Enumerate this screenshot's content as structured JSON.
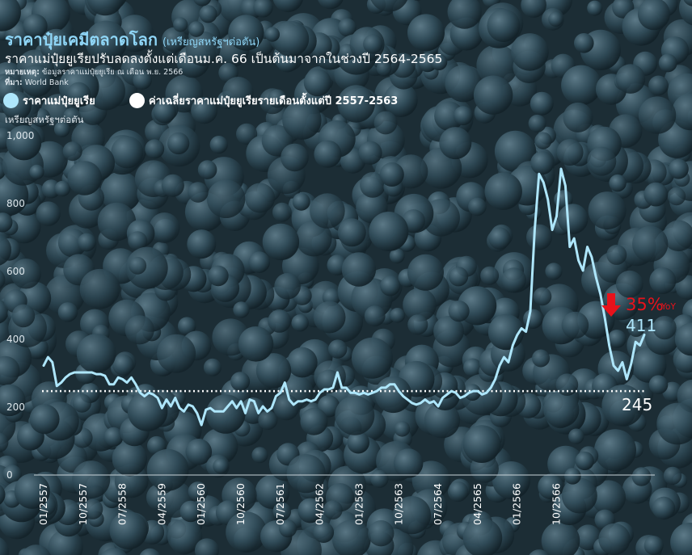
{
  "header": {
    "title": "ราคาปุ๋ยเคมีตลาดโลก",
    "title_unit": "(เหรียญสหรัฐฯต่อตัน)",
    "subtitle": "ราคาแม่ปุ๋ยยูเรียปรับลดลงตั้งแต่เดือนม.ค. 66 เป็นต้นมาจากในช่วงปี 2564-2565",
    "note_label": "หมายเหตุ:",
    "note_text": " ข้อมูลราคาแม่ปุ๋ยยูเรีย ณ เดือน พ.ย. 2566",
    "source_label": "ที่มา:",
    "source_text": " World Bank"
  },
  "legend": {
    "series_label": "ราคาแม่ปุ๋ยยูเรีย",
    "average_label": "ค่าเฉลี่ยราคาแม่ปุ๋ยยูเรียรายเดือนตั้งแต่ปี 2557-2563"
  },
  "colors": {
    "series": "#aee6fb",
    "average": "#ffffff",
    "down_arrow": "#e8121b",
    "background": "#34505e"
  },
  "chart_data": {
    "type": "line",
    "ylabel": "เหรียญสหรัฐฯต่อตัน",
    "ylim": [
      0,
      1000
    ],
    "yticks": [
      0,
      200,
      400,
      600,
      800,
      1000
    ],
    "ytick_labels": [
      "0",
      "200",
      "400",
      "600",
      "800",
      "1,000"
    ],
    "xtick_labels": [
      "01/2557",
      "10/2557",
      "07/2558",
      "04/2559",
      "01/2560",
      "10/2560",
      "07/2561",
      "04/2562",
      "01/2563",
      "10/2563",
      "07/2564",
      "04/2565",
      "01/2566",
      "10/2566"
    ],
    "x_start": "01/2557",
    "x_end": "11/2566",
    "series": [
      {
        "values": [
          320,
          345,
          330,
          260,
          270,
          285,
          295,
          300,
          300,
          300,
          300,
          300,
          295,
          295,
          290,
          265,
          265,
          285,
          280,
          270,
          285,
          265,
          240,
          230,
          240,
          235,
          225,
          195,
          220,
          200,
          225,
          195,
          185,
          205,
          200,
          180,
          145,
          190,
          195,
          185,
          185,
          185,
          200,
          215,
          195,
          215,
          180,
          220,
          215,
          180,
          200,
          185,
          195,
          230,
          240,
          270,
          220,
          205,
          215,
          215,
          220,
          215,
          220,
          240,
          250,
          250,
          255,
          300,
          255,
          255,
          240,
          240,
          235,
          240,
          235,
          240,
          245,
          255,
          255,
          265,
          265,
          245,
          230,
          220,
          210,
          205,
          210,
          220,
          210,
          215,
          200,
          225,
          235,
          245,
          240,
          225,
          230,
          240,
          245,
          245,
          235,
          240,
          255,
          280,
          320,
          345,
          330,
          380,
          410,
          430,
          420,
          480,
          720,
          885,
          860,
          810,
          720,
          760,
          900,
          850,
          670,
          695,
          630,
          600,
          670,
          640,
          580,
          530,
          460,
          380,
          320,
          305,
          330,
          280,
          325,
          390,
          380,
          411
        ]
      }
    ],
    "average": 245,
    "average_label": "245",
    "last_value_label": "411",
    "change_label": "35%",
    "change_suffix": "YoY"
  }
}
